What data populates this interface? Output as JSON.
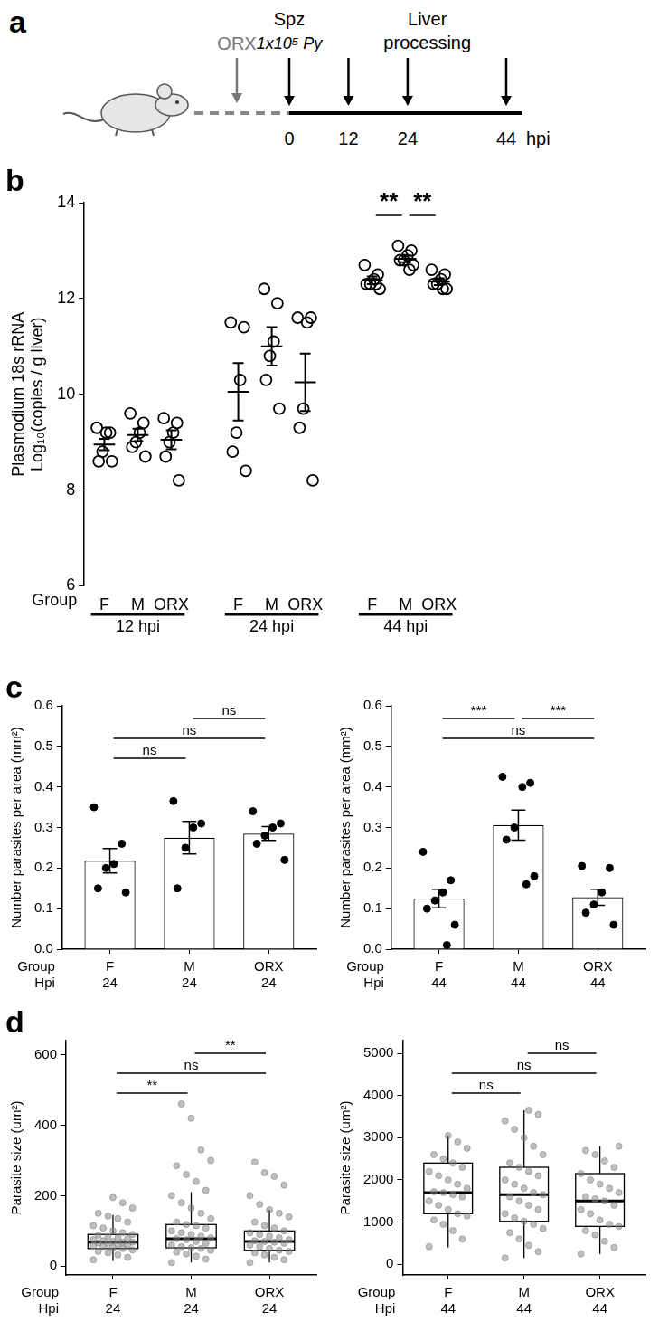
{
  "diagram": {
    "panel_label": "a",
    "pretreatment": {
      "label": "ORX"
    },
    "injection": {
      "label": "Spz",
      "dose": "1x10⁵ Py",
      "time": 0
    },
    "sampling": {
      "label": "Liver processing",
      "times": [
        12,
        24,
        44
      ]
    },
    "axis": {
      "ticks": [
        0,
        12,
        24,
        44
      ],
      "unit": "hpi"
    }
  },
  "chart_data": [
    {
      "panel_label": "b",
      "type": "scatter",
      "y_label": [
        "Plasmodium 18s rRNA",
        "Log₁₀(copies / g liver)"
      ],
      "x_row_titles": [
        "Group"
      ],
      "categories": [
        "F",
        "M",
        "ORX",
        null,
        "F",
        "M",
        "ORX",
        null,
        "F",
        "M",
        "ORX"
      ],
      "x_groups": [
        "12 hpi",
        "24 hpi",
        "44 hpi"
      ],
      "values": [
        [
          9.3,
          9.2,
          9.2,
          8.8,
          8.6,
          8.6
        ],
        [
          9.6,
          9.4,
          9.2,
          9.0,
          8.9,
          8.7
        ],
        [
          9.5,
          9.4,
          9.2,
          9.0,
          8.7,
          8.2
        ],
        null,
        [
          11.5,
          11.4,
          10.3,
          9.2,
          8.8,
          8.4
        ],
        [
          12.2,
          11.9,
          11.1,
          10.8,
          10.3,
          9.7
        ],
        [
          11.6,
          11.6,
          11.5,
          9.7,
          9.3,
          8.2
        ],
        null,
        [
          12.7,
          12.5,
          12.4,
          12.3,
          12.3,
          12.2,
          12.3
        ],
        [
          13.1,
          13.0,
          12.9,
          12.8,
          12.8,
          12.7,
          12.6
        ],
        [
          12.6,
          12.5,
          12.4,
          12.3,
          12.3,
          12.2,
          12.2
        ]
      ],
      "means": [
        8.95,
        9.15,
        9.05,
        null,
        10.05,
        11.0,
        10.25,
        null,
        12.38,
        12.83,
        12.35
      ],
      "errors": [
        0.12,
        0.13,
        0.2,
        null,
        0.6,
        0.4,
        0.6,
        null,
        0.08,
        0.07,
        0.07
      ],
      "color": "#000000",
      "marker": "open_circle",
      "ylim": [
        6,
        14
      ],
      "yticks": [
        6,
        8,
        10,
        12,
        14
      ],
      "grid": false,
      "comparisons": [
        {
          "x_group": "44 hpi",
          "pair": [
            "F",
            "M"
          ],
          "label": "**"
        },
        {
          "x_group": "44 hpi",
          "pair": [
            "M",
            "ORX"
          ],
          "label": "**"
        }
      ]
    },
    {
      "panel_label": "c",
      "type": "bar",
      "y_label": "Number parasites per area (mm²)",
      "x_row_titles": [
        "Group",
        "Hpi"
      ],
      "categories": [
        "F",
        "M",
        "ORX"
      ],
      "hpi": [
        "24",
        "24",
        "24"
      ],
      "values": [
        0.218,
        0.275,
        0.285
      ],
      "errors": [
        0.03,
        0.04,
        0.017
      ],
      "points": [
        [
          0.35,
          0.26,
          0.21,
          0.2,
          0.15,
          0.14
        ],
        [
          0.365,
          0.31,
          0.3,
          0.25,
          0.15
        ],
        [
          0.34,
          0.31,
          0.3,
          0.28,
          0.26,
          0.22
        ]
      ],
      "color": "#ffffff",
      "marker": "circle",
      "ylim": [
        0,
        0.6
      ],
      "yticks": [
        {
          "value": 0,
          "label": "0.0"
        },
        0.1,
        0.2,
        0.3,
        0.4,
        0.5,
        0.6
      ],
      "grid": false,
      "comparisons": [
        {
          "pair": [
            "F",
            "M"
          ],
          "label": "ns"
        },
        {
          "pair": [
            "F",
            "ORX"
          ],
          "label": "ns"
        },
        {
          "pair": [
            "M",
            "ORX"
          ],
          "label": "ns"
        }
      ]
    },
    {
      "type": "bar",
      "y_label": "Number parasites per area (mm²)",
      "x_row_titles": [
        "Group",
        "Hpi"
      ],
      "categories": [
        "F",
        "M",
        "ORX"
      ],
      "hpi": [
        "44",
        "44",
        "44"
      ],
      "values": [
        0.125,
        0.306,
        0.128
      ],
      "errors": [
        0.023,
        0.037,
        0.02
      ],
      "points": [
        [
          0.24,
          0.17,
          0.14,
          0.12,
          0.1,
          0.06,
          0.01
        ],
        [
          0.425,
          0.41,
          0.4,
          0.3,
          0.27,
          0.18,
          0.16
        ],
        [
          0.205,
          0.2,
          0.14,
          0.11,
          0.09,
          0.06
        ]
      ],
      "color": "#ffffff",
      "marker": "circle",
      "ylim": [
        0,
        0.6
      ],
      "yticks": [
        {
          "value": 0,
          "label": "0.0"
        },
        0.1,
        0.2,
        0.3,
        0.4,
        0.5,
        0.6
      ],
      "grid": false,
      "comparisons": [
        {
          "pair": [
            "F",
            "ORX"
          ],
          "label": "ns"
        },
        {
          "pair": [
            "F",
            "M"
          ],
          "label": "***"
        },
        {
          "pair": [
            "M",
            "ORX"
          ],
          "label": "***"
        }
      ]
    },
    {
      "panel_label": "d",
      "type": "box",
      "y_label": "Parasite size (um²)",
      "x_row_titles": [
        "Group",
        "Hpi"
      ],
      "categories": [
        "F",
        "M",
        "ORX"
      ],
      "hpi": [
        "24",
        "24",
        "24"
      ],
      "boxes": [
        {
          "low": 15,
          "q1": 50,
          "median": 68,
          "q3": 90,
          "high": 145
        },
        {
          "low": 10,
          "q1": 52,
          "median": 78,
          "q3": 118,
          "high": 210
        },
        {
          "low": 10,
          "q1": 45,
          "median": 70,
          "q3": 100,
          "high": 160
        }
      ],
      "points": [
        [
          18,
          25,
          32,
          38,
          42,
          46,
          50,
          52,
          55,
          58,
          60,
          62,
          64,
          66,
          68,
          68,
          70,
          72,
          75,
          78,
          80,
          84,
          88,
          90,
          95,
          100,
          108,
          115,
          125,
          135,
          142,
          150,
          165,
          180,
          195
        ],
        [
          10,
          20,
          28,
          35,
          40,
          45,
          50,
          52,
          55,
          60,
          65,
          70,
          75,
          78,
          80,
          85,
          90,
          95,
          100,
          108,
          115,
          118,
          125,
          135,
          150,
          165,
          180,
          200,
          215,
          240,
          260,
          285,
          300,
          330,
          420,
          460
        ],
        [
          10,
          18,
          25,
          32,
          38,
          42,
          45,
          50,
          55,
          60,
          65,
          68,
          70,
          72,
          75,
          80,
          85,
          90,
          95,
          100,
          108,
          115,
          125,
          140,
          150,
          160,
          175,
          200,
          230,
          255,
          265,
          295
        ]
      ],
      "color": "#808080",
      "marker": "circle",
      "ylim": [
        -25,
        640
      ],
      "yticks": [
        0,
        200,
        400,
        600
      ],
      "grid": false,
      "comparisons": [
        {
          "pair": [
            "F",
            "M"
          ],
          "label": "**"
        },
        {
          "pair": [
            "F",
            "ORX"
          ],
          "label": "ns"
        },
        {
          "pair": [
            "M",
            "ORX"
          ],
          "label": "**"
        }
      ]
    },
    {
      "type": "box",
      "y_label": "Parasite size (um²)",
      "x_row_titles": [
        "Group",
        "Hpi"
      ],
      "categories": [
        "F",
        "M",
        "ORX"
      ],
      "hpi": [
        "44",
        "44",
        "44"
      ],
      "boxes": [
        {
          "low": 400,
          "q1": 1200,
          "median": 1700,
          "q3": 2400,
          "high": 3050
        },
        {
          "low": 150,
          "q1": 1020,
          "median": 1650,
          "q3": 2300,
          "high": 3650
        },
        {
          "low": 250,
          "q1": 900,
          "median": 1500,
          "q3": 2150,
          "high": 2800
        }
      ],
      "points": [
        [
          420,
          600,
          800,
          950,
          1050,
          1150,
          1200,
          1300,
          1400,
          1500,
          1600,
          1650,
          1700,
          1720,
          1800,
          1900,
          2000,
          2100,
          2200,
          2300,
          2400,
          2500,
          2600,
          2750,
          2900,
          3050
        ],
        [
          150,
          300,
          450,
          600,
          750,
          850,
          950,
          1020,
          1100,
          1200,
          1300,
          1400,
          1500,
          1600,
          1650,
          1700,
          1800,
          1900,
          2000,
          2100,
          2200,
          2300,
          2400,
          2600,
          2800,
          3000,
          3200,
          3400,
          3550,
          3650
        ],
        [
          250,
          400,
          550,
          700,
          800,
          900,
          950,
          1050,
          1200,
          1300,
          1400,
          1500,
          1550,
          1600,
          1700,
          1800,
          1900,
          2000,
          2150,
          2300,
          2450,
          2600,
          2700,
          2800
        ]
      ],
      "color": "#808080",
      "marker": "circle",
      "ylim": [
        -250,
        5300
      ],
      "yticks": [
        0,
        1000,
        2000,
        3000,
        4000,
        5000
      ],
      "grid": false,
      "comparisons": [
        {
          "pair": [
            "F",
            "M"
          ],
          "label": "ns"
        },
        {
          "pair": [
            "F",
            "ORX"
          ],
          "label": "ns"
        },
        {
          "pair": [
            "M",
            "ORX"
          ],
          "label": "ns"
        }
      ]
    }
  ]
}
